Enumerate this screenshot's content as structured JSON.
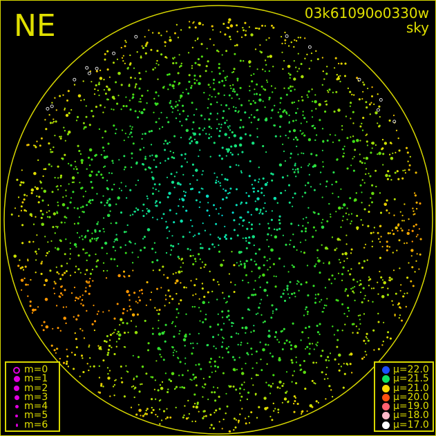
{
  "header": {
    "direction": "NE",
    "frame_id": "03k61090o0330w",
    "kind": "sky"
  },
  "magnitude_legend": {
    "color": "#e000e0",
    "items": [
      {
        "label": "m=0",
        "style": "ring"
      },
      {
        "label": "m=1",
        "style": "dot"
      },
      {
        "label": "m=2",
        "style": "dot"
      },
      {
        "label": "m=3",
        "style": "dot"
      },
      {
        "label": "m=4",
        "style": "dot"
      },
      {
        "label": "m=5",
        "style": "dot"
      },
      {
        "label": "m=6",
        "style": "dot"
      }
    ]
  },
  "mu_legend": {
    "items": [
      {
        "label": "μ=22.0",
        "color": "#1a4cff"
      },
      {
        "label": "μ=21.5",
        "color": "#10e060"
      },
      {
        "label": "μ=21.0",
        "color": "#ffd800"
      },
      {
        "label": "μ=20.0",
        "color": "#ff5010"
      },
      {
        "label": "μ=19.0",
        "color": "#ff6070"
      },
      {
        "label": "μ=18.0",
        "color": "#ffb8c8"
      },
      {
        "label": "μ=17.0",
        "color": "#ffffff"
      }
    ]
  },
  "colors": {
    "frame": "#d8d800",
    "horizon": "#d8d800",
    "background": "#000000"
  }
}
